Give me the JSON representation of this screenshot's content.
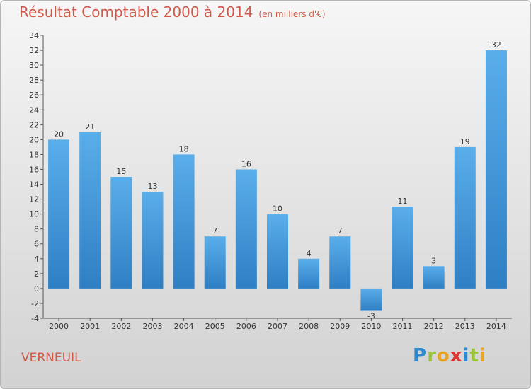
{
  "header": {
    "title": "Résultat Comptable 2000 à 2014",
    "subtitle": "(en milliers d'€)"
  },
  "footer": {
    "city": "VERNEUIL",
    "logo_letters": [
      "P",
      "r",
      "o",
      "x",
      "i",
      "t",
      "i"
    ]
  },
  "chart_data": {
    "type": "bar",
    "title": "Résultat Comptable 2000 à 2014",
    "subtitle": "(en milliers d'€)",
    "xlabel": "",
    "ylabel": "",
    "categories": [
      "2000",
      "2001",
      "2002",
      "2003",
      "2004",
      "2005",
      "2006",
      "2007",
      "2008",
      "2009",
      "2010",
      "2011",
      "2012",
      "2013",
      "2014"
    ],
    "values": [
      20,
      21,
      15,
      13,
      18,
      7,
      16,
      10,
      4,
      7,
      -3,
      11,
      3,
      19,
      32
    ],
    "ylim": [
      -4,
      34
    ],
    "yticks": [
      -4,
      -2,
      0,
      2,
      4,
      6,
      8,
      10,
      12,
      14,
      16,
      18,
      20,
      22,
      24,
      26,
      28,
      30,
      32,
      34
    ],
    "grid": false,
    "legend": "none",
    "bar_color": "#4a9fe0"
  }
}
